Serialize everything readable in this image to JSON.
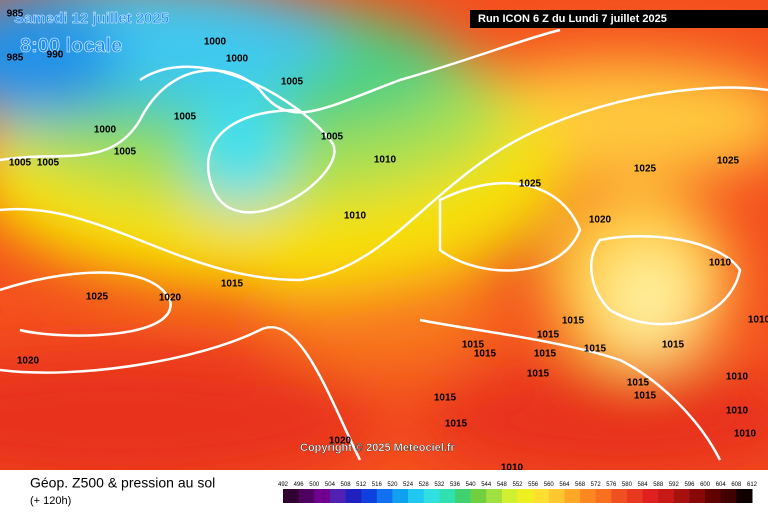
{
  "header": {
    "valid_date": "Samedi 12 juillet 2025",
    "local_time": "8:00 locale",
    "run": "Run ICON 6 Z du Lundi 7 juillet 2025"
  },
  "map": {
    "copyright": "Copyright © 2025 Meteociel.fr",
    "isobar_labels": [
      "985",
      "990",
      "985",
      "1000",
      "1000",
      "1005",
      "1005",
      "1000",
      "1005",
      "1005",
      "1010",
      "1005",
      "1005",
      "1025",
      "1025",
      "1025",
      "1020",
      "1010",
      "1010",
      "1025",
      "1020",
      "1015",
      "1020",
      "1015",
      "1015",
      "1015",
      "1015",
      "1015",
      "1015",
      "1015",
      "1015",
      "1015",
      "1015",
      "1015",
      "1010",
      "1010",
      "1015",
      "1010",
      "1010",
      "1020",
      "1010"
    ]
  },
  "footer": {
    "title": "Géop. Z500 & pression au sol",
    "lead": "(+ 120h)",
    "scale_labels": [
      492,
      496,
      500,
      504,
      508,
      512,
      516,
      520,
      524,
      528,
      532,
      536,
      540,
      544,
      548,
      552,
      556,
      560,
      564,
      568,
      572,
      576,
      580,
      584,
      588,
      592,
      596,
      600,
      604,
      608,
      612
    ]
  }
}
